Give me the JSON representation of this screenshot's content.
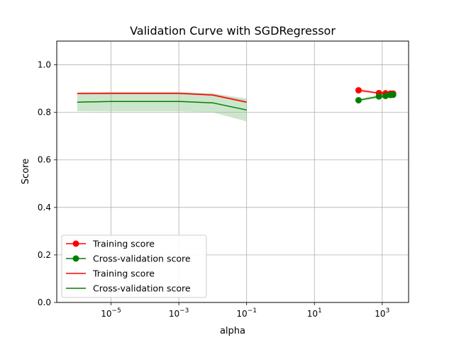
{
  "chart_data": {
    "type": "line",
    "title": "Validation Curve with SGDRegressor",
    "xlabel": "alpha",
    "ylabel": "Score",
    "xscale": "log",
    "xlim": [
      2.5e-07,
      6000
    ],
    "ylim": [
      0.0,
      1.1
    ],
    "grid": true,
    "legend_location": "lower-left",
    "x_ticks": [
      {
        "value": 1e-05,
        "base": "10",
        "exp": "−5"
      },
      {
        "value": 0.001,
        "base": "10",
        "exp": "−3"
      },
      {
        "value": 0.1,
        "base": "10",
        "exp": "−1"
      },
      {
        "value": 10,
        "base": "10",
        "exp": "1"
      },
      {
        "value": 1000,
        "base": "10",
        "exp": "3"
      }
    ],
    "y_ticks": [
      {
        "value": 0.0,
        "label": "0.0"
      },
      {
        "value": 0.2,
        "label": "0.2"
      },
      {
        "value": 0.4,
        "label": "0.4"
      },
      {
        "value": 0.6,
        "label": "0.6"
      },
      {
        "value": 0.8,
        "label": "0.8"
      },
      {
        "value": 1.0,
        "label": "1.0"
      }
    ],
    "series": [
      {
        "name": "Training score",
        "kind": "markers",
        "color": "#ff0000",
        "x": [
          200,
          800,
          1250,
          1750,
          2100
        ],
        "y": [
          0.893,
          0.881,
          0.88,
          0.879,
          0.879
        ],
        "band": [
          0.885,
          0.878,
          0.876,
          0.875,
          0.875
        ],
        "band_hi": [
          0.9,
          0.885,
          0.884,
          0.883,
          0.883
        ]
      },
      {
        "name": "Cross-validation score",
        "kind": "markers",
        "color": "#008000",
        "x": [
          200,
          800,
          1250,
          1750,
          2100
        ],
        "y": [
          0.851,
          0.867,
          0.869,
          0.873,
          0.874
        ],
        "band": [
          0.846,
          0.86,
          0.861,
          0.863,
          0.864
        ],
        "band_hi": [
          0.856,
          0.875,
          0.878,
          0.882,
          0.884
        ]
      },
      {
        "name": "Training score",
        "kind": "line",
        "color": "#ff0000",
        "x": [
          1e-06,
          1e-05,
          0.0001,
          0.001,
          0.01,
          0.1
        ],
        "y": [
          0.88,
          0.88,
          0.88,
          0.88,
          0.873,
          0.843
        ],
        "band": [
          0.875,
          0.876,
          0.876,
          0.876,
          0.869,
          0.838
        ],
        "band_hi": [
          0.884,
          0.884,
          0.884,
          0.884,
          0.877,
          0.848
        ]
      },
      {
        "name": "Cross-validation score",
        "kind": "line",
        "color": "#008000",
        "x": [
          1e-06,
          1e-05,
          0.0001,
          0.001,
          0.01,
          0.1
        ],
        "y": [
          0.843,
          0.846,
          0.846,
          0.846,
          0.84,
          0.81
        ],
        "band": [
          0.805,
          0.804,
          0.804,
          0.804,
          0.8,
          0.762
        ],
        "band_hi": [
          0.88,
          0.886,
          0.886,
          0.886,
          0.88,
          0.858
        ]
      }
    ]
  }
}
